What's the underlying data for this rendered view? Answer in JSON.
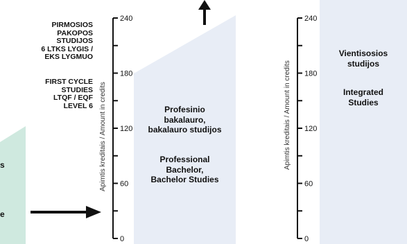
{
  "left_block": {
    "lt_lines": [
      "PIRMOSIOS",
      "PAKOPOS",
      "STUDIJOS",
      "6 LTKS LYGIS /",
      "EKS LYGMUO"
    ],
    "en_lines": [
      "FIRST CYCLE",
      "STUDIES",
      "LTQF / EQF",
      "LEVEL 6"
    ],
    "clipped_left_letters": [
      "s",
      "e"
    ]
  },
  "axis_left": {
    "label": "Apimtis kreditais / Amount in credits",
    "ticks": [
      "0",
      "60",
      "120",
      "180",
      "240"
    ]
  },
  "axis_right": {
    "label": "Apimtis kreditais / Amount in credits",
    "ticks": [
      "0",
      "60",
      "120",
      "180",
      "240"
    ]
  },
  "bachelor_box": {
    "lt_lines": [
      "Profesinio",
      "bakalauro,",
      "bakalauro studijos"
    ],
    "en_lines": [
      "Professional",
      "Bachelor,",
      "Bachelor Studies"
    ]
  },
  "integrated_box": {
    "lt_lines": [
      "Vientisosios",
      "studijos"
    ],
    "en_lines": [
      "Integrated",
      "Studies"
    ]
  },
  "colors": {
    "panel": "#e8edf6",
    "green": "#cfe9df",
    "arrow": "#111111"
  }
}
